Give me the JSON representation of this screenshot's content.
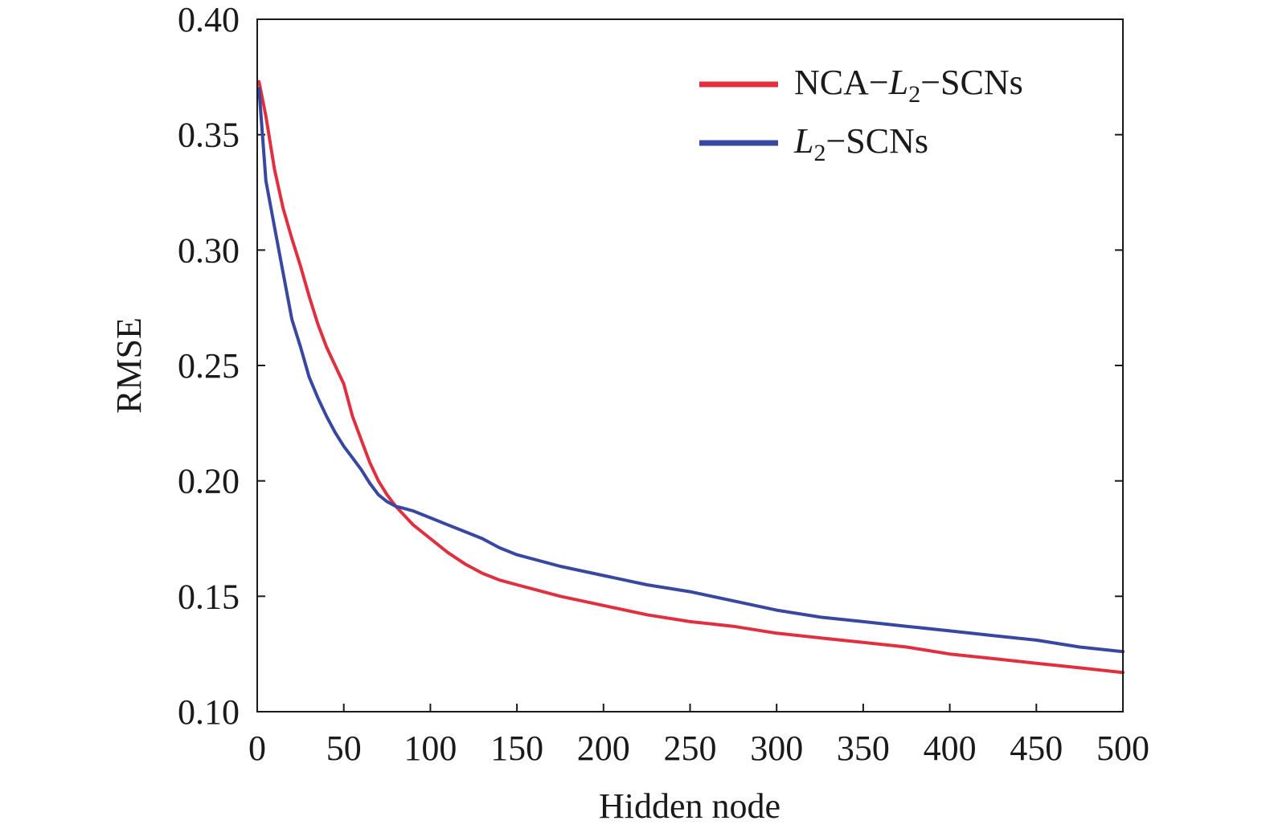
{
  "chart_data": {
    "type": "line",
    "xlabel": "Hidden node",
    "ylabel": "RMSE",
    "xlim": [
      0,
      500
    ],
    "ylim": [
      0.1,
      0.4
    ],
    "xticks": [
      "0",
      "50",
      "100",
      "150",
      "200",
      "250",
      "300",
      "350",
      "400",
      "450",
      "500"
    ],
    "yticks": [
      "0.10",
      "0.15",
      "0.20",
      "0.25",
      "0.30",
      "0.35",
      "0.40"
    ],
    "grid": false,
    "legend_position": "top-right",
    "series": [
      {
        "name": "NCA−L2−SCNs",
        "legend": {
          "prefix": "NCA−",
          "italic": "L",
          "sub": "2",
          "suffix": "−SCNs"
        },
        "color": "#e03040",
        "x": [
          1,
          5,
          10,
          15,
          20,
          25,
          30,
          35,
          40,
          45,
          50,
          55,
          60,
          65,
          70,
          75,
          80,
          85,
          90,
          100,
          110,
          120,
          130,
          140,
          150,
          175,
          200,
          225,
          250,
          275,
          300,
          325,
          350,
          375,
          400,
          425,
          450,
          475,
          500
        ],
        "values": [
          0.373,
          0.358,
          0.335,
          0.318,
          0.305,
          0.293,
          0.28,
          0.268,
          0.258,
          0.25,
          0.242,
          0.228,
          0.218,
          0.208,
          0.2,
          0.194,
          0.189,
          0.185,
          0.181,
          0.175,
          0.169,
          0.164,
          0.16,
          0.157,
          0.155,
          0.15,
          0.146,
          0.142,
          0.139,
          0.137,
          0.134,
          0.132,
          0.13,
          0.128,
          0.125,
          0.123,
          0.121,
          0.119,
          0.117
        ]
      },
      {
        "name": "L2−SCNs",
        "legend": {
          "prefix": "",
          "italic": "L",
          "sub": "2",
          "suffix": "−SCNs"
        },
        "color": "#3848a0",
        "x": [
          1,
          5,
          10,
          15,
          20,
          25,
          30,
          35,
          40,
          45,
          50,
          55,
          60,
          65,
          70,
          75,
          80,
          85,
          90,
          100,
          110,
          120,
          130,
          140,
          150,
          175,
          200,
          225,
          250,
          275,
          300,
          325,
          350,
          375,
          400,
          425,
          450,
          475,
          500
        ],
        "values": [
          0.37,
          0.33,
          0.31,
          0.29,
          0.27,
          0.258,
          0.245,
          0.236,
          0.228,
          0.221,
          0.215,
          0.21,
          0.205,
          0.199,
          0.194,
          0.191,
          0.189,
          0.188,
          0.187,
          0.184,
          0.181,
          0.178,
          0.175,
          0.171,
          0.168,
          0.163,
          0.159,
          0.155,
          0.152,
          0.148,
          0.144,
          0.141,
          0.139,
          0.137,
          0.135,
          0.133,
          0.131,
          0.128,
          0.126
        ]
      }
    ]
  }
}
